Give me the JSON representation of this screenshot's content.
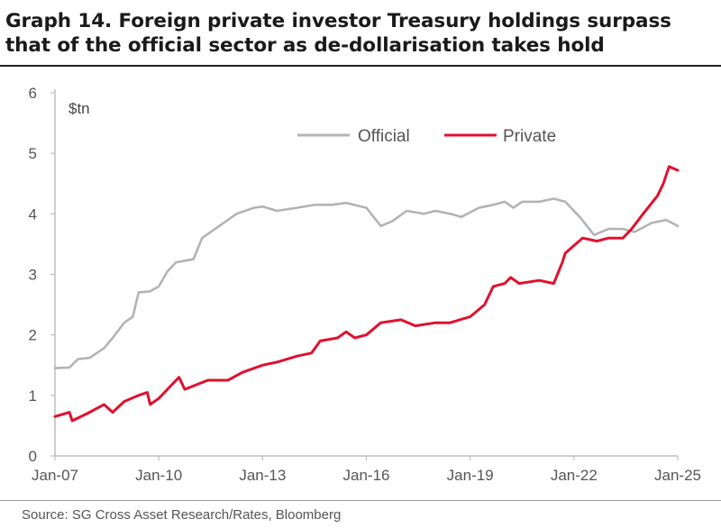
{
  "title": {
    "line1": "Graph 14. Foreign private investor Treasury holdings surpass",
    "line2": "that of the official sector as de-dollarisation takes hold"
  },
  "source": "Source: SG Cross Asset Research/Rates, Bloomberg",
  "colors": {
    "official": "#b3b3b3",
    "private": "#e0102e",
    "axis": "#bdbdbd",
    "text": "#555555"
  },
  "chart_data": {
    "type": "line",
    "unit_label": "$tn",
    "ylim": [
      0,
      6
    ],
    "yticks": [
      "0",
      "1",
      "2",
      "3",
      "4",
      "5",
      "6"
    ],
    "xlim": [
      "2007-01",
      "2025-01"
    ],
    "xticks": [
      "Jan-07",
      "Jan-10",
      "Jan-13",
      "Jan-16",
      "Jan-19",
      "Jan-22",
      "Jan-25"
    ],
    "grid": false,
    "legend_position": "top-center",
    "series": [
      {
        "name": "Official",
        "color": "#b3b3b3",
        "points": [
          [
            "2007-01",
            1.45
          ],
          [
            "2007-06",
            1.46
          ],
          [
            "2007-09",
            1.6
          ],
          [
            "2008-01",
            1.62
          ],
          [
            "2008-06",
            1.78
          ],
          [
            "2008-09",
            1.95
          ],
          [
            "2009-01",
            2.2
          ],
          [
            "2009-04",
            2.3
          ],
          [
            "2009-06",
            2.7
          ],
          [
            "2009-10",
            2.72
          ],
          [
            "2010-01",
            2.8
          ],
          [
            "2010-04",
            3.05
          ],
          [
            "2010-07",
            3.2
          ],
          [
            "2011-01",
            3.25
          ],
          [
            "2011-04",
            3.6
          ],
          [
            "2011-10",
            3.8
          ],
          [
            "2012-04",
            4.0
          ],
          [
            "2012-10",
            4.1
          ],
          [
            "2013-01",
            4.12
          ],
          [
            "2013-06",
            4.05
          ],
          [
            "2014-01",
            4.1
          ],
          [
            "2014-07",
            4.15
          ],
          [
            "2015-01",
            4.15
          ],
          [
            "2015-06",
            4.18
          ],
          [
            "2016-01",
            4.1
          ],
          [
            "2016-06",
            3.8
          ],
          [
            "2016-10",
            3.88
          ],
          [
            "2017-03",
            4.05
          ],
          [
            "2017-09",
            4.0
          ],
          [
            "2018-01",
            4.05
          ],
          [
            "2018-06",
            4.0
          ],
          [
            "2018-10",
            3.95
          ],
          [
            "2019-04",
            4.1
          ],
          [
            "2019-09",
            4.15
          ],
          [
            "2020-01",
            4.2
          ],
          [
            "2020-04",
            4.1
          ],
          [
            "2020-07",
            4.2
          ],
          [
            "2021-01",
            4.2
          ],
          [
            "2021-06",
            4.25
          ],
          [
            "2021-10",
            4.2
          ],
          [
            "2022-03",
            3.95
          ],
          [
            "2022-08",
            3.65
          ],
          [
            "2023-01",
            3.75
          ],
          [
            "2023-06",
            3.75
          ],
          [
            "2023-10",
            3.7
          ],
          [
            "2024-04",
            3.85
          ],
          [
            "2024-09",
            3.9
          ],
          [
            "2025-01",
            3.8
          ]
        ]
      },
      {
        "name": "Private",
        "color": "#e0102e",
        "points": [
          [
            "2007-01",
            0.65
          ],
          [
            "2007-06",
            0.72
          ],
          [
            "2007-07",
            0.58
          ],
          [
            "2008-01",
            0.72
          ],
          [
            "2008-06",
            0.85
          ],
          [
            "2008-09",
            0.72
          ],
          [
            "2009-01",
            0.9
          ],
          [
            "2009-06",
            1.0
          ],
          [
            "2009-09",
            1.05
          ],
          [
            "2009-10",
            0.85
          ],
          [
            "2010-01",
            0.95
          ],
          [
            "2010-06",
            1.2
          ],
          [
            "2010-08",
            1.3
          ],
          [
            "2010-10",
            1.1
          ],
          [
            "2011-06",
            1.25
          ],
          [
            "2012-01",
            1.25
          ],
          [
            "2012-06",
            1.38
          ],
          [
            "2013-01",
            1.5
          ],
          [
            "2013-06",
            1.55
          ],
          [
            "2014-01",
            1.65
          ],
          [
            "2014-06",
            1.7
          ],
          [
            "2014-09",
            1.9
          ],
          [
            "2015-03",
            1.95
          ],
          [
            "2015-06",
            2.05
          ],
          [
            "2015-09",
            1.95
          ],
          [
            "2016-01",
            2.0
          ],
          [
            "2016-06",
            2.2
          ],
          [
            "2017-01",
            2.25
          ],
          [
            "2017-06",
            2.15
          ],
          [
            "2018-01",
            2.2
          ],
          [
            "2018-06",
            2.2
          ],
          [
            "2019-01",
            2.3
          ],
          [
            "2019-06",
            2.5
          ],
          [
            "2019-09",
            2.8
          ],
          [
            "2020-01",
            2.85
          ],
          [
            "2020-03",
            2.95
          ],
          [
            "2020-06",
            2.85
          ],
          [
            "2021-01",
            2.9
          ],
          [
            "2021-06",
            2.85
          ],
          [
            "2021-09",
            3.2
          ],
          [
            "2021-10",
            3.35
          ],
          [
            "2022-04",
            3.6
          ],
          [
            "2022-09",
            3.55
          ],
          [
            "2023-01",
            3.6
          ],
          [
            "2023-06",
            3.6
          ],
          [
            "2023-09",
            3.75
          ],
          [
            "2024-01",
            4.0
          ],
          [
            "2024-06",
            4.3
          ],
          [
            "2024-08",
            4.5
          ],
          [
            "2024-10",
            4.78
          ],
          [
            "2025-01",
            4.72
          ]
        ]
      }
    ]
  }
}
